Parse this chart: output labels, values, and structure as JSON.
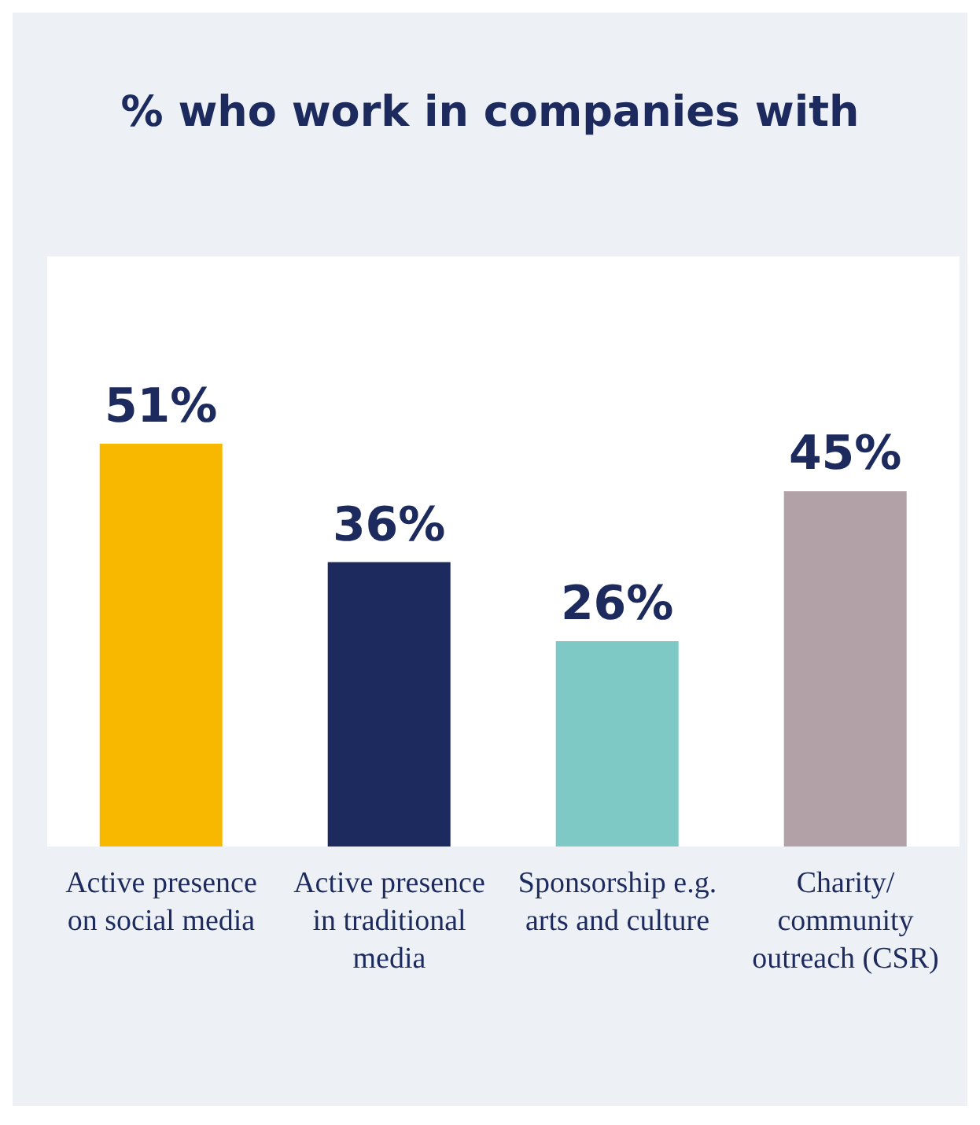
{
  "chart_data": {
    "type": "bar",
    "title": "% who work in companies with",
    "categories": [
      "Active presence on social media",
      "Active presence in traditional media",
      "Sponsorship e.g. arts and culture",
      "Charity/ community outreach (CSR)"
    ],
    "values": [
      51,
      36,
      26,
      45
    ],
    "colors": [
      "#f9b800",
      "#1c2a5e",
      "#7ec8c5",
      "#b2a2a8"
    ],
    "value_labels": [
      "51%",
      "36%",
      "26%",
      "45%"
    ]
  }
}
